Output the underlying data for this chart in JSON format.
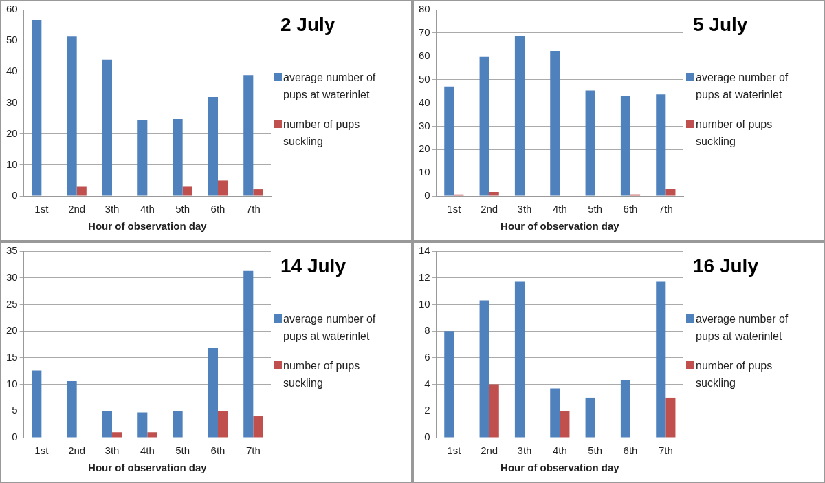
{
  "chart_data": [
    {
      "type": "bar",
      "title": "2 July",
      "xlabel": "Hour of observation day",
      "categories": [
        "1st",
        "2nd",
        "3th",
        "4th",
        "5th",
        "6th",
        "7th"
      ],
      "ylim": [
        0,
        60
      ],
      "yticks": [
        0,
        10,
        20,
        30,
        40,
        50,
        60
      ],
      "grid": "y",
      "legend": "right",
      "series": [
        {
          "name": "average number of pups at waterinlet",
          "color": "#4f81bd",
          "values": [
            56.7,
            51.3,
            43.9,
            24.5,
            24.8,
            31.9,
            38.9
          ]
        },
        {
          "name": "number of pups suckling",
          "color": "#c0504d",
          "values": [
            0,
            3,
            0,
            0,
            3,
            5,
            2.2
          ]
        }
      ]
    },
    {
      "type": "bar",
      "title": "5 July",
      "xlabel": "Hour of observation day",
      "categories": [
        "1st",
        "2nd",
        "3th",
        "4th",
        "5th",
        "6th",
        "7th"
      ],
      "ylim": [
        0,
        80
      ],
      "yticks": [
        0,
        10,
        20,
        30,
        40,
        50,
        60,
        70,
        80
      ],
      "grid": "y",
      "legend": "right",
      "series": [
        {
          "name": "average number of pups at waterinlet",
          "color": "#4f81bd",
          "values": [
            47,
            59.7,
            68.7,
            62.3,
            45.3,
            43.1,
            43.6
          ]
        },
        {
          "name": "number of pups suckling",
          "color": "#c0504d",
          "values": [
            0.7,
            1.8,
            0,
            0,
            0,
            0.7,
            3
          ]
        }
      ]
    },
    {
      "type": "bar",
      "title": "14 July",
      "xlabel": "Hour of observation day",
      "categories": [
        "1st",
        "2nd",
        "3th",
        "4th",
        "5th",
        "6th",
        "7th"
      ],
      "ylim": [
        0,
        35
      ],
      "yticks": [
        0,
        5,
        10,
        15,
        20,
        25,
        30,
        35
      ],
      "grid": "y",
      "legend": "right",
      "series": [
        {
          "name": "average number of pups at waterinlet",
          "color": "#4f81bd",
          "values": [
            12.6,
            10.6,
            5,
            4.7,
            5,
            16.8,
            31.3
          ]
        },
        {
          "name": "number of pups suckling",
          "color": "#c0504d",
          "values": [
            0,
            0,
            1,
            1,
            0,
            5,
            4
          ]
        }
      ]
    },
    {
      "type": "bar",
      "title": "16 July",
      "xlabel": "Hour of observation day",
      "categories": [
        "1st",
        "2nd",
        "3th",
        "4th",
        "5th",
        "6th",
        "7th"
      ],
      "ylim": [
        0,
        14
      ],
      "yticks": [
        0,
        2,
        4,
        6,
        8,
        10,
        12,
        14
      ],
      "grid": "y",
      "legend": "right",
      "series": [
        {
          "name": "average number of pups at waterinlet",
          "color": "#4f81bd",
          "values": [
            8,
            10.3,
            11.7,
            3.7,
            3,
            4.3,
            11.7
          ]
        },
        {
          "name": "number of pups suckling",
          "color": "#c0504d",
          "values": [
            0,
            4,
            0,
            2,
            0,
            0,
            3
          ]
        }
      ]
    }
  ]
}
